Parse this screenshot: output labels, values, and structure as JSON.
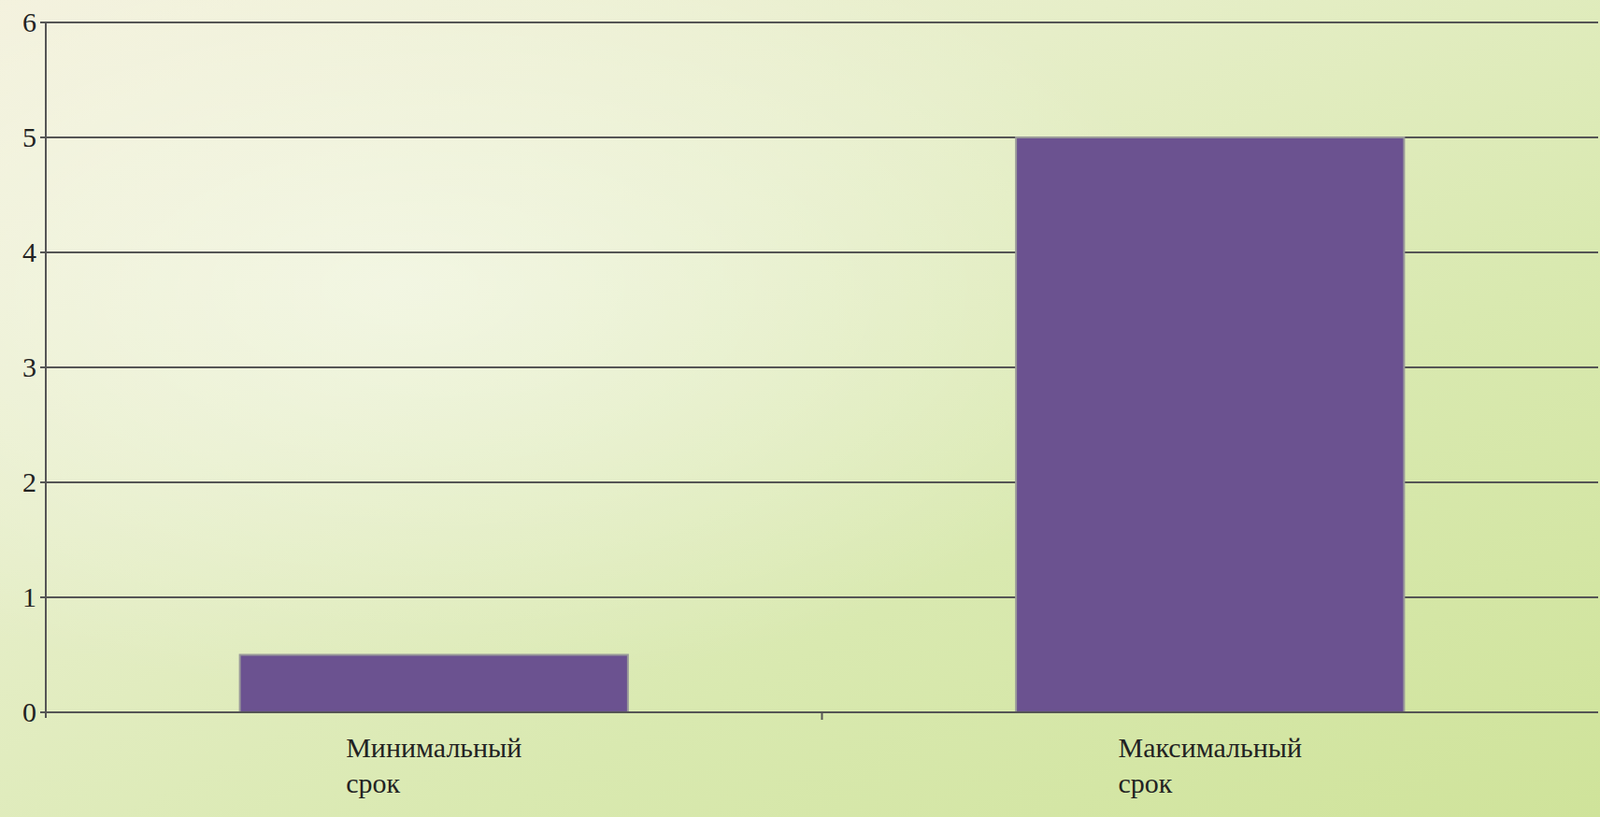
{
  "chart_data": {
    "type": "bar",
    "categories": [
      "Минимальный срок",
      "Максимальный срок"
    ],
    "values": [
      0.5,
      5
    ],
    "color": "#6b5290",
    "ylim": [
      0,
      6
    ],
    "yticks": [
      0,
      1,
      2,
      3,
      4,
      5,
      6
    ],
    "grid": true
  }
}
